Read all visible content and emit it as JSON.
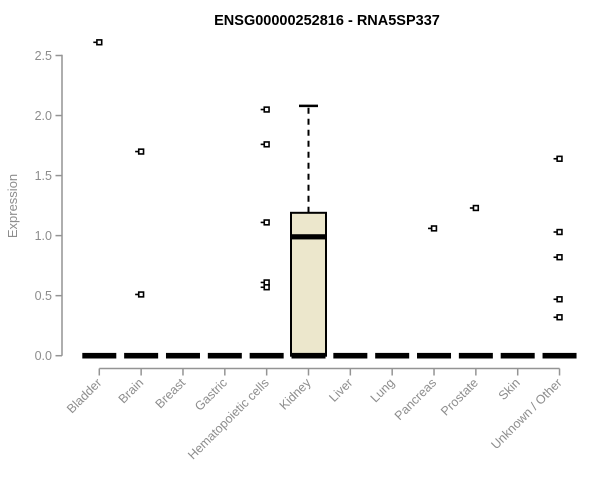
{
  "page": {
    "background": "#ffffff"
  },
  "chart_data": {
    "type": "boxplot",
    "title": "ENSG00000252816 - RNA5SP337",
    "ylabel": "Expression",
    "xlabel": "",
    "ylim": [
      0,
      2.5
    ],
    "yticks": [
      0.0,
      0.5,
      1.0,
      1.5,
      2.0,
      2.5
    ],
    "grid": false,
    "legend": null,
    "categories": [
      "Bladder",
      "Brain",
      "Breast",
      "Gastric",
      "Hematopoietic cells",
      "Kidney",
      "Liver",
      "Lung",
      "Pancreas",
      "Prostate",
      "Skin",
      "Unknown / Other"
    ],
    "boxes": [
      {
        "category": "Bladder",
        "min": 0,
        "q1": 0,
        "median": 0,
        "q3": 0,
        "max": 0,
        "outliers": [
          2.61
        ]
      },
      {
        "category": "Brain",
        "min": 0,
        "q1": 0,
        "median": 0,
        "q3": 0,
        "max": 0,
        "outliers": [
          1.7,
          0.51
        ]
      },
      {
        "category": "Breast",
        "min": 0,
        "q1": 0,
        "median": 0,
        "q3": 0,
        "max": 0,
        "outliers": []
      },
      {
        "category": "Gastric",
        "min": 0,
        "q1": 0,
        "median": 0,
        "q3": 0,
        "max": 0,
        "outliers": []
      },
      {
        "category": "Hematopoietic cells",
        "min": 0,
        "q1": 0,
        "median": 0,
        "q3": 0,
        "max": 0,
        "outliers": [
          2.05,
          1.76,
          1.11,
          0.61,
          0.57
        ]
      },
      {
        "category": "Kidney",
        "min": 0,
        "q1": 0,
        "median": 0.99,
        "q3": 1.19,
        "max": 2.08,
        "outliers": []
      },
      {
        "category": "Liver",
        "min": 0,
        "q1": 0,
        "median": 0,
        "q3": 0,
        "max": 0,
        "outliers": []
      },
      {
        "category": "Lung",
        "min": 0,
        "q1": 0,
        "median": 0,
        "q3": 0,
        "max": 0,
        "outliers": []
      },
      {
        "category": "Pancreas",
        "min": 0,
        "q1": 0,
        "median": 0,
        "q3": 0,
        "max": 0,
        "outliers": [
          1.06
        ]
      },
      {
        "category": "Prostate",
        "min": 0,
        "q1": 0,
        "median": 0,
        "q3": 0,
        "max": 0,
        "outliers": [
          1.23
        ]
      },
      {
        "category": "Skin",
        "min": 0,
        "q1": 0,
        "median": 0,
        "q3": 0,
        "max": 0,
        "outliers": []
      },
      {
        "category": "Unknown / Other",
        "min": 0,
        "q1": 0,
        "median": 0,
        "q3": 0,
        "max": 0,
        "outliers": [
          1.64,
          1.03,
          0.82,
          0.47,
          0.32
        ]
      }
    ],
    "colors": {
      "box_fill": "#ece7cc",
      "box_border": "#000000",
      "median": "#000000",
      "whisker": "#000000",
      "outlier_stroke": "#000000",
      "outlier_fill": "#ffffff",
      "axis": "#949494",
      "tick_label": "#8d8d8d",
      "title": "#000000",
      "background": "#ffffff"
    }
  }
}
